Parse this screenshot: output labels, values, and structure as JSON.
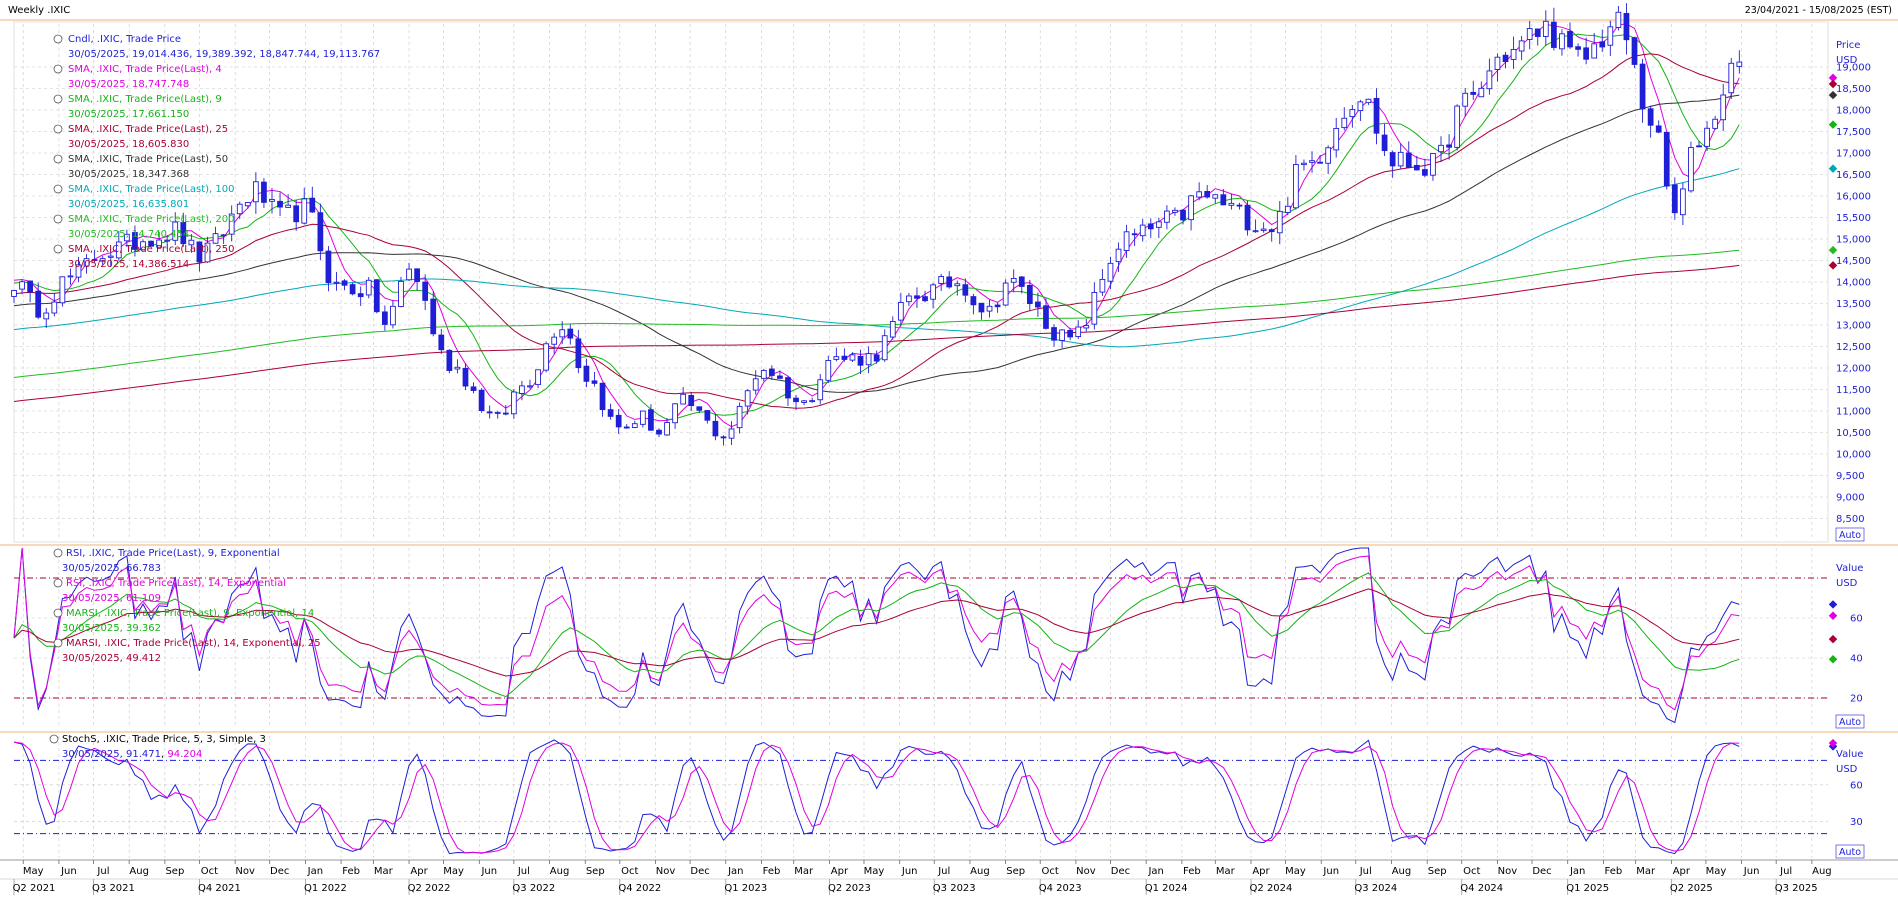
{
  "header": {
    "title": "Weekly .IXIC",
    "date_range": "23/04/2021 - 15/08/2025 (EST)"
  },
  "panels": {
    "price": {
      "unit_label": "Price",
      "currency": "USD",
      "auto_label": "Auto",
      "legend": [
        {
          "label": "Cndl, .IXIC, Trade Price",
          "value": "30/05/2025, 19,014.436, 19,389.392, 18,847.744, 19,113.767",
          "color": "#1f1fd6"
        },
        {
          "label": "SMA, .IXIC, Trade Price(Last), 4",
          "value": "30/05/2025, 18,747.748",
          "color": "#e100e1"
        },
        {
          "label": "SMA, .IXIC, Trade Price(Last), 9",
          "value": "30/05/2025, 17,661.150",
          "color": "#14b414"
        },
        {
          "label": "SMA, .IXIC, Trade Price(Last), 25",
          "value": "30/05/2025, 18,605.830",
          "color": "#aa0033"
        },
        {
          "label": "SMA, .IXIC, Trade Price(Last), 50",
          "value": "30/05/2025, 18,347.368",
          "color": "#333333"
        },
        {
          "label": "SMA, .IXIC, Trade Price(Last), 100",
          "value": "30/05/2025, 16,635.801",
          "color": "#00a8b8"
        },
        {
          "label": "SMA, .IXIC, Trade Price(Last), 200",
          "value": "30/05/2025, 14,740.454",
          "color": "#22bb22"
        },
        {
          "label": "SMA, .IXIC, Trade Price(Last), 250",
          "value": "30/05/2025, 14,386.514",
          "color": "#aa0033"
        }
      ]
    },
    "rsi": {
      "unit_label": "Value",
      "currency": "USD",
      "auto_label": "Auto",
      "legend": [
        {
          "label": "RSI, .IXIC, Trade Price(Last), 9, Exponential",
          "value": "30/05/2025, 66.783",
          "color": "#1f1fd6"
        },
        {
          "label": "RSI, .IXIC, Trade Price(Last), 14, Exponential",
          "value": "30/05/2025, 61.109",
          "color": "#e100e1"
        },
        {
          "label": "MARSI, .IXIC, Trade Price(Last), 9, Exponential, 14",
          "value": "30/05/2025, 39.362",
          "color": "#14b414"
        },
        {
          "label": "MARSI, .IXIC, Trade Price(Last), 14, Exponential, 25",
          "value": "30/05/2025, 49.412",
          "color": "#aa0033"
        }
      ]
    },
    "stoch": {
      "unit_label": "Value",
      "currency": "USD",
      "auto_label": "Auto",
      "legend_label": "StochS, .IXIC, Trade Price,  5, 3, Simple, 3",
      "legend_date": "30/05/2025, ",
      "legend_k": "91.471",
      "legend_d": "94.204",
      "k_color": "#1f1fd6",
      "d_color": "#e100e1"
    }
  },
  "chart_data": [
    {
      "type": "candlestick",
      "panel": "price",
      "period": "weekly",
      "ylim": [
        8000,
        20000
      ],
      "y_ticks": [
        8500,
        9000,
        9500,
        10000,
        10500,
        11000,
        11500,
        12000,
        12500,
        13000,
        13500,
        14000,
        14500,
        15000,
        15500,
        16000,
        16500,
        17000,
        17500,
        18000,
        18500,
        19000
      ],
      "close_anchors": [
        {
          "t": "2021-04-23",
          "v": 14000
        },
        {
          "t": "2021-05-14",
          "v": 13400
        },
        {
          "t": "2021-06-11",
          "v": 14100
        },
        {
          "t": "2021-07-09",
          "v": 14700
        },
        {
          "t": "2021-08-27",
          "v": 15100
        },
        {
          "t": "2021-09-10",
          "v": 15200
        },
        {
          "t": "2021-10-01",
          "v": 14600
        },
        {
          "t": "2021-11-19",
          "v": 16100
        },
        {
          "t": "2021-12-10",
          "v": 15500
        },
        {
          "t": "2021-12-31",
          "v": 15700
        },
        {
          "t": "2022-01-28",
          "v": 13900
        },
        {
          "t": "2022-02-25",
          "v": 13800
        },
        {
          "t": "2022-03-11",
          "v": 13000
        },
        {
          "t": "2022-04-01",
          "v": 14300
        },
        {
          "t": "2022-05-06",
          "v": 12100
        },
        {
          "t": "2022-06-17",
          "v": 10800
        },
        {
          "t": "2022-07-08",
          "v": 11600
        },
        {
          "t": "2022-08-12",
          "v": 13050
        },
        {
          "t": "2022-09-02",
          "v": 11800
        },
        {
          "t": "2022-09-30",
          "v": 10600
        },
        {
          "t": "2022-10-21",
          "v": 10850
        },
        {
          "t": "2022-11-04",
          "v": 10500
        },
        {
          "t": "2022-11-25",
          "v": 11200
        },
        {
          "t": "2022-12-30",
          "v": 10450
        },
        {
          "t": "2023-02-03",
          "v": 12000
        },
        {
          "t": "2023-03-10",
          "v": 11150
        },
        {
          "t": "2023-03-31",
          "v": 12200
        },
        {
          "t": "2023-05-05",
          "v": 12250
        },
        {
          "t": "2023-06-16",
          "v": 13700
        },
        {
          "t": "2023-07-21",
          "v": 14000
        },
        {
          "t": "2023-08-18",
          "v": 13300
        },
        {
          "t": "2023-09-01",
          "v": 14000
        },
        {
          "t": "2023-10-27",
          "v": 12650
        },
        {
          "t": "2023-12-15",
          "v": 15000
        },
        {
          "t": "2024-01-26",
          "v": 15450
        },
        {
          "t": "2024-02-16",
          "v": 16000
        },
        {
          "t": "2024-04-19",
          "v": 15300
        },
        {
          "t": "2024-05-17",
          "v": 16700
        },
        {
          "t": "2024-07-05",
          "v": 18350
        },
        {
          "t": "2024-08-02",
          "v": 16800
        },
        {
          "t": "2024-09-06",
          "v": 16700
        },
        {
          "t": "2024-10-04",
          "v": 18150
        },
        {
          "t": "2024-11-08",
          "v": 19300
        },
        {
          "t": "2024-12-13",
          "v": 19900
        },
        {
          "t": "2025-01-10",
          "v": 19150
        },
        {
          "t": "2025-02-14",
          "v": 20000
        },
        {
          "t": "2025-03-14",
          "v": 17800
        },
        {
          "t": "2025-04-04",
          "v": 15600
        },
        {
          "t": "2025-04-25",
          "v": 17350
        },
        {
          "t": "2025-05-30",
          "v": 19114
        }
      ],
      "last_candle": {
        "date": "30/05/2025",
        "open": 19014.436,
        "high": 19389.392,
        "low": 18847.744,
        "close": 19113.767
      },
      "series_last": [
        {
          "name": "SMA 4",
          "value": 18747.748
        },
        {
          "name": "SMA 9",
          "value": 17661.15
        },
        {
          "name": "SMA 25",
          "value": 18605.83
        },
        {
          "name": "SMA 50",
          "value": 18347.368
        },
        {
          "name": "SMA 100",
          "value": 16635.801
        },
        {
          "name": "SMA 200",
          "value": 14740.454
        },
        {
          "name": "SMA 250",
          "value": 14386.514
        }
      ]
    },
    {
      "type": "line",
      "panel": "rsi",
      "ylim": [
        5,
        95
      ],
      "y_ticks": [
        20,
        40,
        60
      ],
      "ref_lines": [
        80,
        20
      ],
      "series_last": [
        {
          "name": "RSI 9",
          "value": 66.783
        },
        {
          "name": "RSI 14",
          "value": 61.109
        },
        {
          "name": "MARSI 9/14",
          "value": 39.362
        },
        {
          "name": "MARSI 14/25",
          "value": 49.412
        }
      ]
    },
    {
      "type": "line",
      "panel": "stoch",
      "ylim": [
        0,
        100
      ],
      "y_ticks": [
        30,
        60
      ],
      "ref_lines": [
        80,
        20
      ],
      "series_last": [
        {
          "name": "%K",
          "value": 91.471
        },
        {
          "name": "%D",
          "value": 94.204
        }
      ]
    }
  ],
  "x_axis": {
    "months": [
      {
        "label": "May",
        "date": "2021-05-01"
      },
      {
        "label": "Jun",
        "date": "2021-06-01"
      },
      {
        "label": "Jul",
        "date": "2021-07-01"
      },
      {
        "label": "Aug",
        "date": "2021-08-01"
      },
      {
        "label": "Sep",
        "date": "2021-09-01"
      },
      {
        "label": "Oct",
        "date": "2021-10-01"
      },
      {
        "label": "Nov",
        "date": "2021-11-01"
      },
      {
        "label": "Dec",
        "date": "2021-12-01"
      },
      {
        "label": "Jan",
        "date": "2022-01-01"
      },
      {
        "label": "Feb",
        "date": "2022-02-01"
      },
      {
        "label": "Mar",
        "date": "2022-03-01"
      },
      {
        "label": "Apr",
        "date": "2022-04-01"
      },
      {
        "label": "May",
        "date": "2022-05-01"
      },
      {
        "label": "Jun",
        "date": "2022-06-01"
      },
      {
        "label": "Jul",
        "date": "2022-07-01"
      },
      {
        "label": "Aug",
        "date": "2022-08-01"
      },
      {
        "label": "Sep",
        "date": "2022-09-01"
      },
      {
        "label": "Oct",
        "date": "2022-10-01"
      },
      {
        "label": "Nov",
        "date": "2022-11-01"
      },
      {
        "label": "Dec",
        "date": "2022-12-01"
      },
      {
        "label": "Jan",
        "date": "2023-01-01"
      },
      {
        "label": "Feb",
        "date": "2023-02-01"
      },
      {
        "label": "Mar",
        "date": "2023-03-01"
      },
      {
        "label": "Apr",
        "date": "2023-04-01"
      },
      {
        "label": "May",
        "date": "2023-05-01"
      },
      {
        "label": "Jun",
        "date": "2023-06-01"
      },
      {
        "label": "Jul",
        "date": "2023-07-01"
      },
      {
        "label": "Aug",
        "date": "2023-08-01"
      },
      {
        "label": "Sep",
        "date": "2023-09-01"
      },
      {
        "label": "Oct",
        "date": "2023-10-01"
      },
      {
        "label": "Nov",
        "date": "2023-11-01"
      },
      {
        "label": "Dec",
        "date": "2023-12-01"
      },
      {
        "label": "Jan",
        "date": "2024-01-01"
      },
      {
        "label": "Feb",
        "date": "2024-02-01"
      },
      {
        "label": "Mar",
        "date": "2024-03-01"
      },
      {
        "label": "Apr",
        "date": "2024-04-01"
      },
      {
        "label": "May",
        "date": "2024-05-01"
      },
      {
        "label": "Jun",
        "date": "2024-06-01"
      },
      {
        "label": "Jul",
        "date": "2024-07-01"
      },
      {
        "label": "Aug",
        "date": "2024-08-01"
      },
      {
        "label": "Sep",
        "date": "2024-09-01"
      },
      {
        "label": "Oct",
        "date": "2024-10-01"
      },
      {
        "label": "Nov",
        "date": "2024-11-01"
      },
      {
        "label": "Dec",
        "date": "2024-12-01"
      },
      {
        "label": "Jan",
        "date": "2025-01-01"
      },
      {
        "label": "Feb",
        "date": "2025-02-01"
      },
      {
        "label": "Mar",
        "date": "2025-03-01"
      },
      {
        "label": "Apr",
        "date": "2025-04-01"
      },
      {
        "label": "May",
        "date": "2025-05-01"
      },
      {
        "label": "Jun",
        "date": "2025-06-01"
      },
      {
        "label": "Jul",
        "date": "2025-07-01"
      },
      {
        "label": "Aug",
        "date": "2025-08-01"
      }
    ],
    "quarters": [
      {
        "label": "Q2 2021",
        "date": "2021-04-01"
      },
      {
        "label": "Q3 2021",
        "date": "2021-07-01"
      },
      {
        "label": "Q4 2021",
        "date": "2021-10-01"
      },
      {
        "label": "Q1 2022",
        "date": "2022-01-01"
      },
      {
        "label": "Q2 2022",
        "date": "2022-04-01"
      },
      {
        "label": "Q3 2022",
        "date": "2022-07-01"
      },
      {
        "label": "Q4 2022",
        "date": "2022-10-01"
      },
      {
        "label": "Q1 2023",
        "date": "2023-01-01"
      },
      {
        "label": "Q2 2023",
        "date": "2023-04-01"
      },
      {
        "label": "Q3 2023",
        "date": "2023-07-01"
      },
      {
        "label": "Q4 2023",
        "date": "2023-10-01"
      },
      {
        "label": "Q1 2024",
        "date": "2024-01-01"
      },
      {
        "label": "Q2 2024",
        "date": "2024-04-01"
      },
      {
        "label": "Q3 2024",
        "date": "2024-07-01"
      },
      {
        "label": "Q4 2024",
        "date": "2024-10-01"
      },
      {
        "label": "Q1 2025",
        "date": "2025-01-01"
      },
      {
        "label": "Q2 2025",
        "date": "2025-04-01"
      },
      {
        "label": "Q3 2025",
        "date": "2025-07-01"
      }
    ],
    "start": "2021-04-23",
    "end": "2025-08-15"
  },
  "colors": {
    "grid": "#c8c8c8",
    "panel_border": "#f0b070",
    "ref_line": "#aa0033",
    "stoch_ref": "#1f1fd6",
    "candle": "#1f1fd6"
  }
}
